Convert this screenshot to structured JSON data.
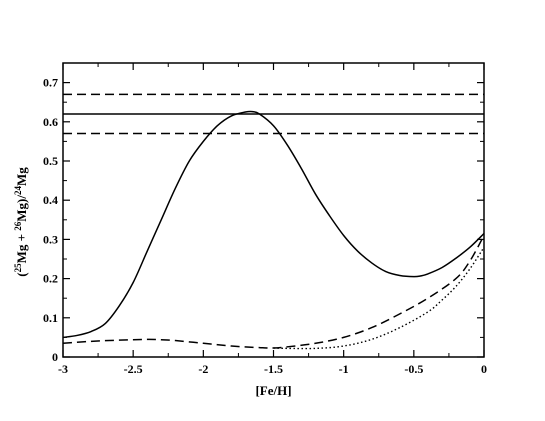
{
  "chart_data": {
    "type": "line",
    "title": "",
    "xlabel": "[Fe/H]",
    "ylabel_parts": {
      "open": "(",
      "iso1_mass": "25",
      "iso1_elem": "Mg + ",
      "iso2_mass": "26",
      "iso2_elem": "Mg)/",
      "iso3_mass": "24",
      "iso3_elem": "Mg"
    },
    "xlim": [
      -3,
      0
    ],
    "ylim": [
      0,
      0.75
    ],
    "xticks": [
      -3,
      -2.5,
      -2,
      -1.5,
      -1,
      -0.5,
      0
    ],
    "xtick_labels": [
      "-3",
      "-2.5",
      "-2",
      "-1.5",
      "-1",
      "-0.5",
      "0"
    ],
    "yticks": [
      0,
      0.1,
      0.2,
      0.3,
      0.4,
      0.5,
      0.6,
      0.7
    ],
    "ytick_labels": [
      "0",
      "0.1",
      "0.2",
      "0.3",
      "0.4",
      "0.5",
      "0.6",
      "0.7"
    ],
    "grid": false,
    "legend": "none",
    "hlines": [
      {
        "y": 0.67,
        "style": "dashed"
      },
      {
        "y": 0.62,
        "style": "solid"
      },
      {
        "y": 0.57,
        "style": "dashed"
      }
    ],
    "series": [
      {
        "style": "solid",
        "x": [
          -3.0,
          -2.9,
          -2.8,
          -2.7,
          -2.6,
          -2.5,
          -2.4,
          -2.3,
          -2.2,
          -2.1,
          -2.0,
          -1.9,
          -1.8,
          -1.7,
          -1.65,
          -1.6,
          -1.5,
          -1.4,
          -1.3,
          -1.2,
          -1.1,
          -1.0,
          -0.9,
          -0.8,
          -0.7,
          -0.6,
          -0.5,
          -0.45,
          -0.4,
          -0.3,
          -0.2,
          -0.1,
          0.0
        ],
        "y": [
          0.05,
          0.055,
          0.065,
          0.085,
          0.13,
          0.19,
          0.27,
          0.35,
          0.43,
          0.5,
          0.55,
          0.59,
          0.615,
          0.625,
          0.626,
          0.62,
          0.59,
          0.54,
          0.48,
          0.415,
          0.36,
          0.31,
          0.27,
          0.24,
          0.218,
          0.208,
          0.205,
          0.207,
          0.212,
          0.228,
          0.252,
          0.28,
          0.315
        ]
      },
      {
        "style": "dashed",
        "x": [
          -3.0,
          -2.8,
          -2.6,
          -2.4,
          -2.3,
          -2.2,
          -2.0,
          -1.8,
          -1.6,
          -1.5,
          -1.4,
          -1.2,
          -1.0,
          -0.8,
          -0.6,
          -0.4,
          -0.2,
          -0.1,
          0.0
        ],
        "y": [
          0.035,
          0.04,
          0.043,
          0.045,
          0.044,
          0.042,
          0.035,
          0.028,
          0.024,
          0.023,
          0.026,
          0.035,
          0.05,
          0.075,
          0.11,
          0.15,
          0.2,
          0.245,
          0.31
        ]
      },
      {
        "style": "dotted",
        "x": [
          -1.5,
          -1.4,
          -1.2,
          -1.0,
          -0.8,
          -0.6,
          -0.4,
          -0.3,
          -0.2,
          -0.1,
          0.0
        ],
        "y": [
          0.023,
          0.022,
          0.022,
          0.028,
          0.045,
          0.075,
          0.115,
          0.145,
          0.18,
          0.225,
          0.28
        ]
      }
    ]
  }
}
